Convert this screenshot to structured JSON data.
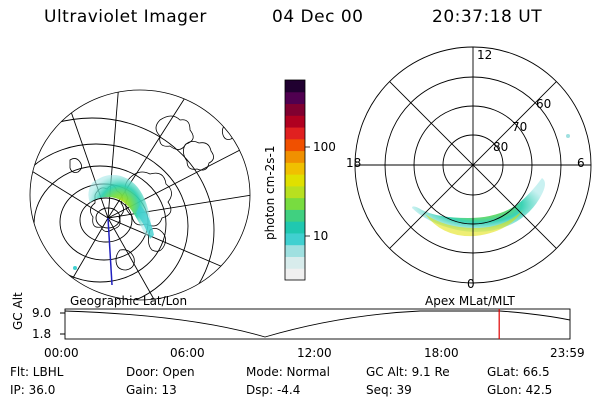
{
  "header": {
    "instrument": "Ultraviolet Imager",
    "date": "04 Dec 00",
    "time": "20:37:18 UT"
  },
  "colorbar": {
    "unit_label": "photon cm-2s-1",
    "ticks": [
      "100",
      "10"
    ],
    "colors": [
      "#f0f0f0",
      "#d8ecec",
      "#9fe0e0",
      "#40d0d0",
      "#20c8b0",
      "#40d080",
      "#78dc40",
      "#b8e020",
      "#e0e000",
      "#f0c000",
      "#f09000",
      "#f05000",
      "#e02020",
      "#b00020",
      "#800030",
      "#500050",
      "#200030"
    ]
  },
  "geo_panel": {
    "label": "Geographic Lat/Lon"
  },
  "polar_panel": {
    "label": "Apex  MLat/MLT",
    "mlt_labels": {
      "top": "12",
      "left": "18",
      "right": "6",
      "bottom": "0"
    },
    "lat_labels": [
      "60",
      "70",
      "80"
    ]
  },
  "altitude_plot": {
    "ylabel": "GC Alt",
    "y_ticks": [
      "9.0",
      "1.8"
    ],
    "x_ticks": [
      "00:00",
      "06:00",
      "12:00",
      "18:00",
      "23:59"
    ],
    "current_marker_hours": 20.62,
    "marker_color": "#e00000"
  },
  "info": {
    "filter": "Flt: LBHL",
    "door": "Door: Open",
    "mode": "Mode: Normal",
    "gc_alt": "GC Alt: 9.1 Re",
    "glat": "GLat: 66.5",
    "ip": "IP: 36.0",
    "gain": "Gain: 13",
    "dsp": "Dsp:   -4.4",
    "seq": "Seq: 39",
    "glon": "GLon:  42.5"
  }
}
